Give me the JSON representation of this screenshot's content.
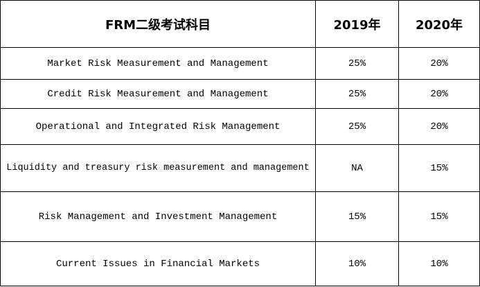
{
  "header": {
    "subject": "FRM二级考试科目",
    "year1": "2019年",
    "year2": "2020年"
  },
  "rows": [
    {
      "subject": "Market Risk Measurement and Management",
      "y2019": "25%",
      "y2020": "20%"
    },
    {
      "subject": "Credit Risk Measurement and Management",
      "y2019": "25%",
      "y2020": "20%"
    },
    {
      "subject": "Operational and Integrated Risk Management",
      "y2019": "25%",
      "y2020": "20%"
    },
    {
      "subject": "Liquidity and treasury risk measurement and management",
      "y2019": "NA",
      "y2020": "15%"
    },
    {
      "subject": "Risk Management and Investment Management",
      "y2019": "15%",
      "y2020": "15%"
    },
    {
      "subject": "Current Issues in Financial Markets",
      "y2019": "10%",
      "y2020": "10%"
    }
  ]
}
